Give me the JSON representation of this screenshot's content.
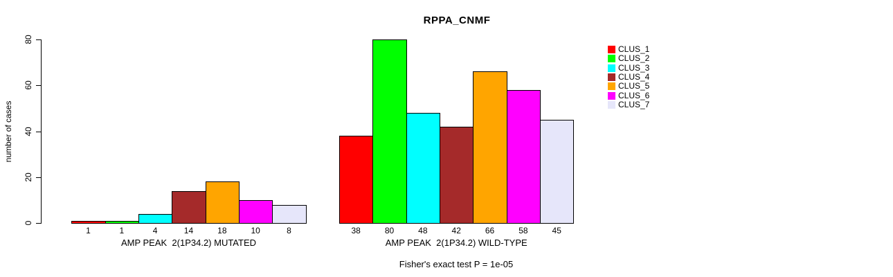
{
  "chart_data": {
    "type": "bar",
    "title": "RPPA_CNMF",
    "ylabel": "number of cases",
    "xlabel": "",
    "ylim": [
      0,
      80
    ],
    "yticks": [
      0,
      20,
      40,
      60,
      80
    ],
    "grid": false,
    "legend_position": "right",
    "bar_border_color": "#000000",
    "series_names": [
      "CLUS_1",
      "CLUS_2",
      "CLUS_3",
      "CLUS_4",
      "CLUS_5",
      "CLUS_6",
      "CLUS_7"
    ],
    "colors": [
      "#FF0000",
      "#00FF00",
      "#00FFFF",
      "#A52A2A",
      "#FFA500",
      "#FF00FF",
      "#E6E6FA"
    ],
    "groups": [
      {
        "label": "AMP PEAK  2(1P34.2) MUTATED",
        "values": [
          1,
          1,
          4,
          14,
          18,
          10,
          8
        ]
      },
      {
        "label": "AMP PEAK  2(1P34.2) WILD-TYPE",
        "values": [
          38,
          80,
          48,
          42,
          66,
          58,
          45
        ]
      }
    ],
    "annotation": "Fisher's exact test P = 1e-05"
  }
}
